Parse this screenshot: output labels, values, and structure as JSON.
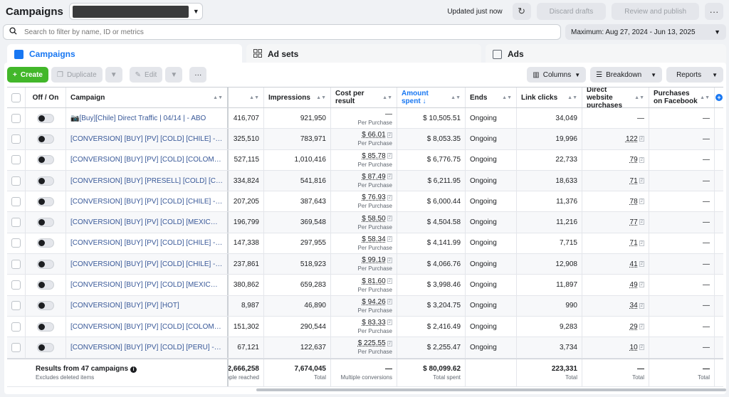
{
  "header": {
    "title": "Campaigns",
    "updated": "Updated just now",
    "discard_label": "Discard drafts",
    "publish_label": "Review and publish"
  },
  "search": {
    "placeholder": "Search to filter by name, ID or metrics"
  },
  "date_range": "Maximum: Aug 27, 2024 - Jun 13, 2025",
  "tabs": [
    {
      "label": "Campaigns",
      "icon": "campaigns-icon"
    },
    {
      "label": "Ad sets",
      "icon": "adsets-icon"
    },
    {
      "label": "Ads",
      "icon": "ads-icon"
    }
  ],
  "toolbar": {
    "create": "Create",
    "duplicate": "Duplicate",
    "edit": "Edit",
    "more": "···",
    "columns": "Columns",
    "breakdown": "Breakdown",
    "reports": "Reports"
  },
  "columns": {
    "onoff": "Off / On",
    "campaign": "Campaign",
    "reach": "",
    "impressions": "Impressions",
    "cpr": "Cost per result",
    "amount": "Amount spent ↓",
    "ends": "Ends",
    "clicks": "Link clicks",
    "dwp": "Direct website purchases",
    "pof": "Purchases on Facebook"
  },
  "rows": [
    {
      "name": "📷[Buy][Chile] Direct Traffic | 04/14 | - ABO",
      "reach": "416,707",
      "impressions": "921,950",
      "cpr": "—",
      "cpr_sub": "Per Purchase",
      "amount": "$ 10,505.51",
      "ends": "Ongoing",
      "clicks": "34,049",
      "dwp": "—",
      "pof": "—"
    },
    {
      "name": "[CONVERSION] [BUY] [PV] [COLD] [CHILE] - VSL",
      "reach": "325,510",
      "impressions": "783,971",
      "cpr": "$ 66.01",
      "cpr_sub": "Per Purchase",
      "amount": "$ 8,053.35",
      "ends": "Ongoing",
      "clicks": "19,996",
      "dwp": "122",
      "pof": "—"
    },
    {
      "name": "[CONVERSION] [BUY] [PV] [COLD] [COLOMBIA]...",
      "reach": "527,115",
      "impressions": "1,010,416",
      "cpr": "$ 85.78",
      "cpr_sub": "Per Purchase",
      "amount": "$ 6,776.75",
      "ends": "Ongoing",
      "clicks": "22,733",
      "dwp": "79",
      "pof": "—"
    },
    {
      "name": "[CONVERSION] [BUY] [PRESELL] [COLD] [COLO...",
      "reach": "334,824",
      "impressions": "541,816",
      "cpr": "$ 87.49",
      "cpr_sub": "Per Purchase",
      "amount": "$ 6,211.95",
      "ends": "Ongoing",
      "clicks": "18,633",
      "dwp": "71",
      "pof": "—"
    },
    {
      "name": "[CONVERSION] [BUY] [PV] [COLD] [CHILE] - BOOK",
      "reach": "207,205",
      "impressions": "387,643",
      "cpr": "$ 76.93",
      "cpr_sub": "Per Purchase",
      "amount": "$ 6,000.44",
      "ends": "Ongoing",
      "clicks": "11,376",
      "dwp": "78",
      "pof": "—"
    },
    {
      "name": "[CONVERSION] [BUY] [PV] [COLD] [MEXICO] - B...",
      "reach": "196,799",
      "impressions": "369,548",
      "cpr": "$ 58.50",
      "cpr_sub": "Per Purchase",
      "amount": "$ 4,504.58",
      "ends": "Ongoing",
      "clicks": "11,216",
      "dwp": "77",
      "pof": "—"
    },
    {
      "name": "[CONVERSION] [BUY] [PV] [COLD] [CHILE] - VSL...",
      "reach": "147,338",
      "impressions": "297,955",
      "cpr": "$ 58.34",
      "cpr_sub": "Per Purchase",
      "amount": "$ 4,141.99",
      "ends": "Ongoing",
      "clicks": "7,715",
      "dwp": "71",
      "pof": "—"
    },
    {
      "name": "[CONVERSION] [BUY] [PV] [COLD] [CHILE] - VSL...",
      "reach": "237,861",
      "impressions": "518,923",
      "cpr": "$ 99.19",
      "cpr_sub": "Per Purchase",
      "amount": "$ 4,066.76",
      "ends": "Ongoing",
      "clicks": "12,908",
      "dwp": "41",
      "pof": "—"
    },
    {
      "name": "[CONVERSION] [BUY] [PV] [COLD] [MEXICO] - VS...",
      "reach": "380,862",
      "impressions": "659,283",
      "cpr": "$ 81.60",
      "cpr_sub": "Per Purchase",
      "amount": "$ 3,998.46",
      "ends": "Ongoing",
      "clicks": "11,897",
      "dwp": "49",
      "pof": "—"
    },
    {
      "name": "[CONVERSION] [BUY] [PV] [HOT]",
      "reach": "8,987",
      "impressions": "46,890",
      "cpr": "$ 94.26",
      "cpr_sub": "Per Purchase",
      "amount": "$ 3,204.75",
      "ends": "Ongoing",
      "clicks": "990",
      "dwp": "34",
      "pof": "—"
    },
    {
      "name": "[CONVERSION] [BUY] [PV] [COLD] [COLOMBIA] -...",
      "reach": "151,302",
      "impressions": "290,544",
      "cpr": "$ 83.33",
      "cpr_sub": "Per Purchase",
      "amount": "$ 2,416.49",
      "ends": "Ongoing",
      "clicks": "9,283",
      "dwp": "29",
      "pof": "—"
    },
    {
      "name": "[CONVERSION] [BUY] [PV] [COLD] [PERU] - VSL ...",
      "reach": "67,121",
      "impressions": "122,637",
      "cpr": "$ 225.55",
      "cpr_sub": "Per Purchase",
      "amount": "$ 2,255.47",
      "ends": "Ongoing",
      "clicks": "3,734",
      "dwp": "10",
      "pof": "—"
    }
  ],
  "footer": {
    "results": "Results from 47 campaigns",
    "excludes": "Excludes deleted items",
    "reach": "2,666,258",
    "reach_sub": "ople reached",
    "impressions": "7,674,045",
    "impressions_sub": "Total",
    "cpr": "—",
    "cpr_sub": "Multiple conversions",
    "amount": "$ 80,099.62",
    "amount_sub": "Total spent",
    "clicks": "223,331",
    "clicks_sub": "Total",
    "dwp": "—",
    "dwp_sub": "Total",
    "pof": "—",
    "pof_sub": "Total"
  }
}
